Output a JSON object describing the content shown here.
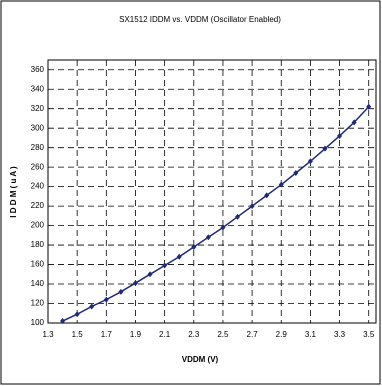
{
  "chart_data": {
    "type": "line",
    "title": "SX1512 IDDM vs. VDDM (Oscillator Enabled)",
    "x_label": "VDDM (V)",
    "y_label": "I D D M   ( u A )",
    "x": [
      1.4,
      1.5,
      1.6,
      1.7,
      1.8,
      1.9,
      2.0,
      2.1,
      2.2,
      2.3,
      2.4,
      2.5,
      2.6,
      2.7,
      2.8,
      2.9,
      3.0,
      3.1,
      3.2,
      3.3,
      3.4,
      3.5
    ],
    "series": [
      {
        "name": "IDDM",
        "color": "#1f2a7a",
        "values": [
          102,
          109,
          117,
          124,
          132,
          141,
          150,
          159,
          168,
          178,
          188,
          198,
          209,
          220,
          231,
          242,
          254,
          266,
          279,
          292,
          306,
          322
        ]
      }
    ],
    "xlim": [
      1.3,
      3.55
    ],
    "xticks": [
      1.3,
      1.5,
      1.7,
      1.9,
      2.1,
      2.3,
      2.5,
      2.7,
      2.9,
      3.1,
      3.3,
      3.5
    ],
    "ylim": [
      100,
      370
    ],
    "yticks": [
      100,
      120,
      140,
      160,
      180,
      200,
      220,
      240,
      260,
      280,
      300,
      320,
      340,
      360
    ],
    "grid": true
  }
}
